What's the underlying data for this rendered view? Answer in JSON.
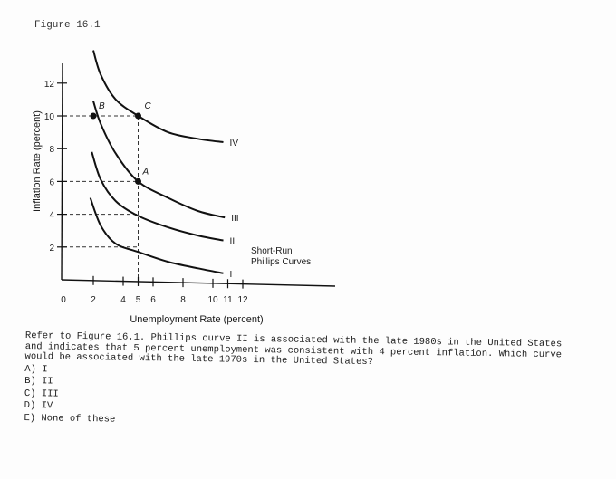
{
  "figure_label": "Figure 16.1",
  "chart_data": {
    "type": "line",
    "title": "",
    "xlabel": "Unemployment Rate (percent)",
    "ylabel": "Inflation Rate (percent)",
    "x_ticks": [
      0,
      2,
      4,
      5,
      6,
      8,
      10,
      11,
      12
    ],
    "y_ticks": [
      2,
      4,
      6,
      8,
      10,
      12
    ],
    "xlim": [
      0,
      16
    ],
    "ylim": [
      0,
      13
    ],
    "curve_annotation": "Short-Run\nPhillips Curves",
    "series": [
      {
        "name": "I",
        "points": [
          [
            1.8,
            5.0
          ],
          [
            2.5,
            3.3
          ],
          [
            3.5,
            2.2
          ],
          [
            5.0,
            1.7
          ],
          [
            7.0,
            1.1
          ],
          [
            9.0,
            0.7
          ],
          [
            10.7,
            0.4
          ]
        ]
      },
      {
        "name": "II",
        "points": [
          [
            1.9,
            7.8
          ],
          [
            2.5,
            6.1
          ],
          [
            3.5,
            4.8
          ],
          [
            5.0,
            3.9
          ],
          [
            7.0,
            3.2
          ],
          [
            9.0,
            2.7
          ],
          [
            10.7,
            2.4
          ]
        ]
      },
      {
        "name": "III",
        "points": [
          [
            2.0,
            10.9
          ],
          [
            2.5,
            9.5
          ],
          [
            3.5,
            7.7
          ],
          [
            5.0,
            6.0
          ],
          [
            7.0,
            5.0
          ],
          [
            9.0,
            4.2
          ],
          [
            10.8,
            3.8
          ]
        ]
      },
      {
        "name": "IV",
        "points": [
          [
            2.0,
            14.0
          ],
          [
            2.5,
            12.5
          ],
          [
            3.5,
            11.0
          ],
          [
            5.0,
            10.0
          ],
          [
            7.0,
            9.0
          ],
          [
            9.0,
            8.6
          ],
          [
            10.7,
            8.4
          ]
        ]
      }
    ],
    "points": [
      {
        "label": "B",
        "x": 2,
        "y": 10
      },
      {
        "label": "C",
        "x": 5,
        "y": 10
      },
      {
        "label": "A",
        "x": 5,
        "y": 6
      }
    ],
    "reference_lines": [
      {
        "from": [
          0,
          10
        ],
        "to": [
          5,
          10
        ]
      },
      {
        "from": [
          5,
          10
        ],
        "to": [
          5,
          0
        ]
      },
      {
        "from": [
          0,
          6
        ],
        "to": [
          5,
          6
        ]
      },
      {
        "from": [
          0,
          4
        ],
        "to": [
          5,
          4
        ]
      },
      {
        "from": [
          0,
          2
        ],
        "to": [
          5,
          2
        ]
      }
    ]
  },
  "question": {
    "text": "Refer to Figure 16.1. Phillips curve II is associated with the late 1980s in the United States and indicates that 5 percent unemployment was consistent with 4 percent inflation. Which curve would be associated with the late 1970s in the United States?",
    "options": [
      "A) I",
      "B) II",
      "C) III",
      "D) IV",
      "E) None of these"
    ]
  }
}
